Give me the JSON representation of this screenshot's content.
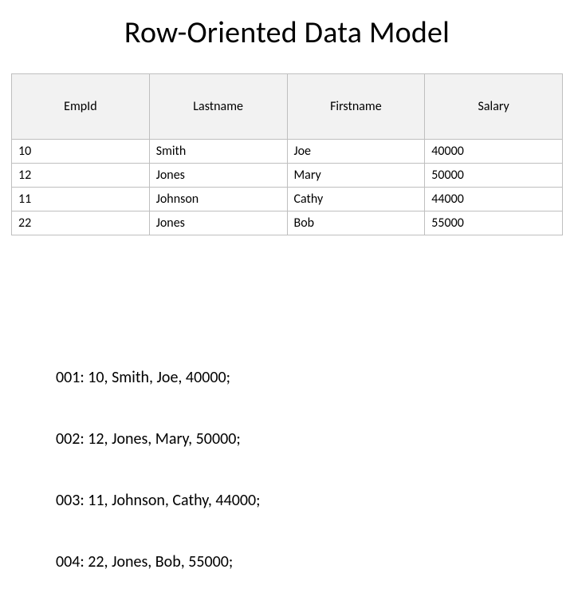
{
  "title": "Row-Oriented Data Model",
  "table": {
    "type": "table",
    "header_bg": "#f2f2f2",
    "border_color": "#bfbfbf",
    "columns": [
      "EmpId",
      "Lastname",
      "Firstname",
      "Salary"
    ],
    "rows": [
      [
        "10",
        "Smith",
        "Joe",
        "40000"
      ],
      [
        "12",
        "Jones",
        "Mary",
        "50000"
      ],
      [
        "11",
        "Johnson",
        "Cathy",
        "44000"
      ],
      [
        "22",
        "Jones",
        "Bob",
        "55000"
      ]
    ]
  },
  "raw": {
    "lines": [
      "001: 10, Smith, Joe, 40000;",
      "002: 12, Jones, Mary, 50000;",
      "003: 11, Johnson, Cathy, 44000;",
      "004: 22, Jones, Bob, 55000;"
    ]
  }
}
